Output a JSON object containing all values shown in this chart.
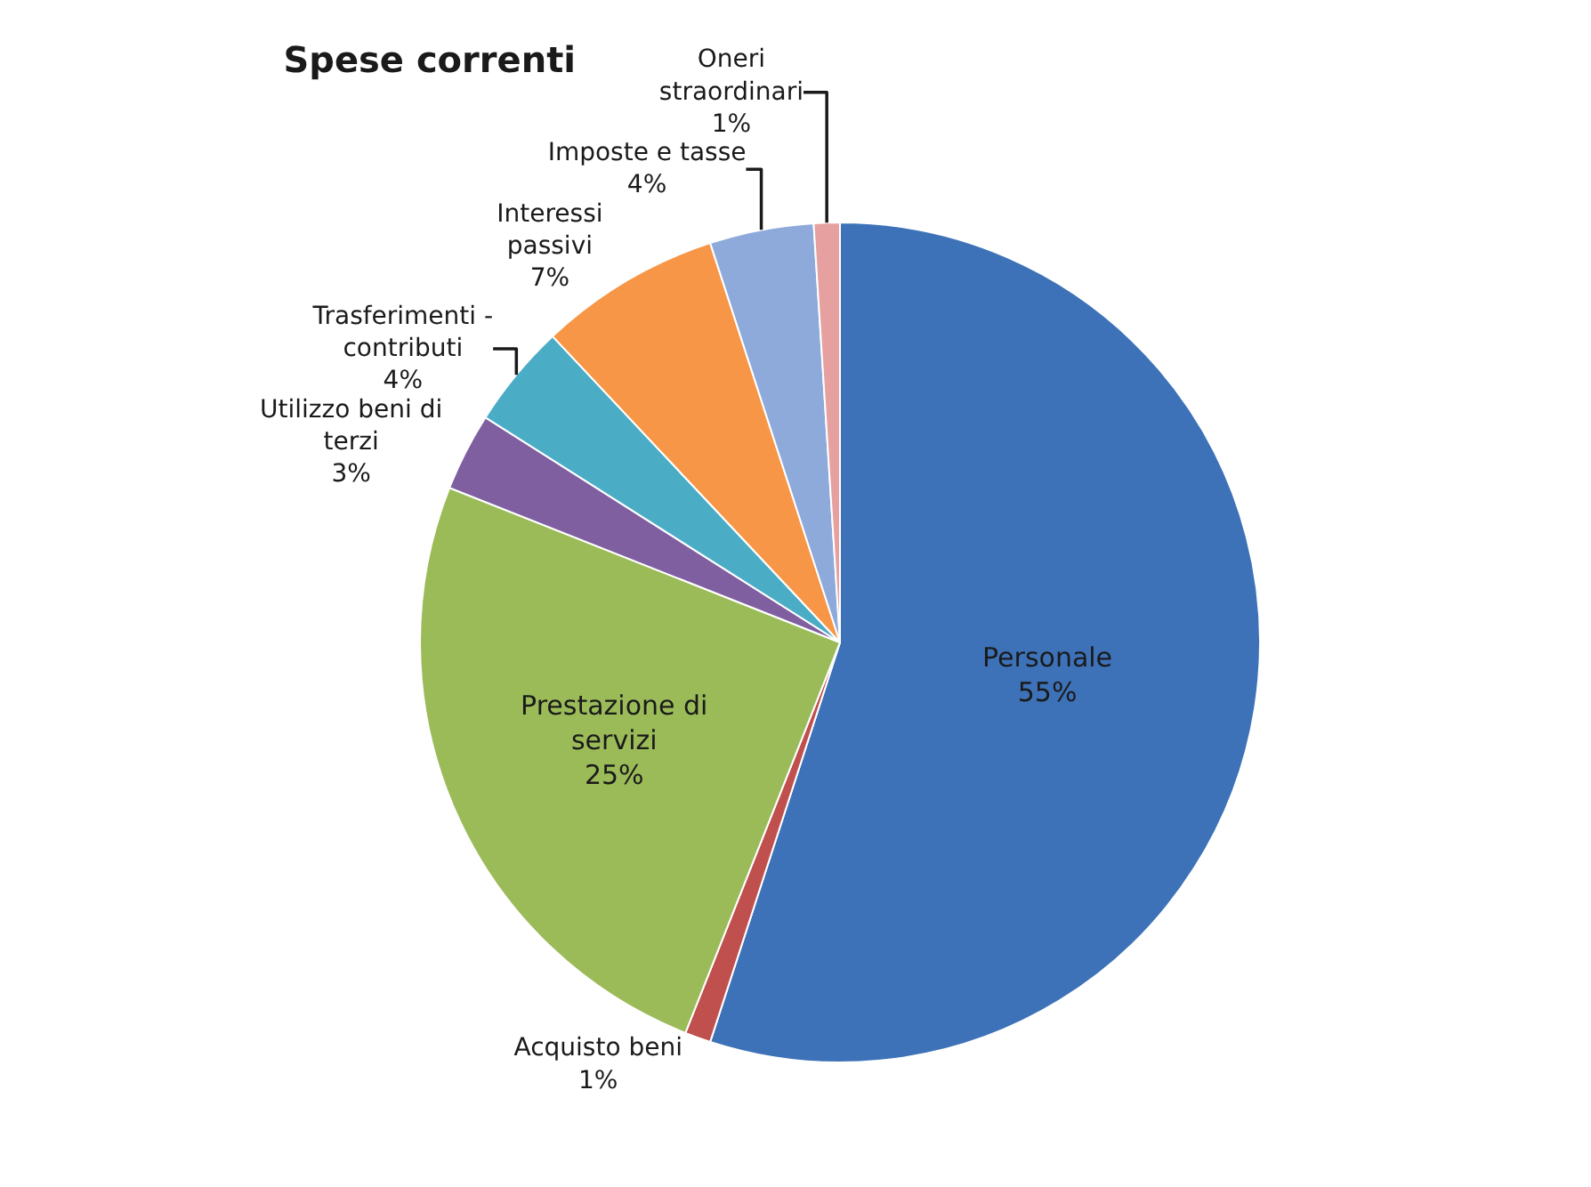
{
  "chart_data": {
    "type": "pie",
    "title": "Spese correnti",
    "legend": false,
    "categories": [
      "Personale",
      "Acquisto beni",
      "Prestazione di servizi",
      "Utilizzo beni di terzi",
      "Trasferimenti - contributi",
      "Interessi passivi",
      "Imposte e tasse",
      "Oneri straordinari"
    ],
    "values": [
      55,
      1,
      25,
      3,
      4,
      7,
      4,
      1
    ],
    "value_labels": [
      "55%",
      "1%",
      "25%",
      "3%",
      "4%",
      "7%",
      "4%",
      "1%"
    ],
    "colors": [
      "#3d72b8",
      "#c0504d",
      "#9bbb59",
      "#7f5fa0",
      "#4bacc6",
      "#f79646",
      "#8eaadb",
      "#e6a0a0"
    ]
  }
}
